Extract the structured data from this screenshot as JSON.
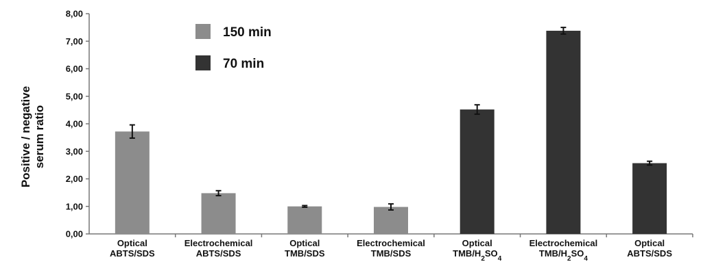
{
  "chart_data": {
    "type": "bar",
    "ylabel_lines": [
      "Positive / negative",
      "serum ratio"
    ],
    "ylim": [
      0,
      8
    ],
    "y_ticks": [
      "0,00",
      "1,00",
      "2,00",
      "3,00",
      "4,00",
      "5,00",
      "6,00",
      "7,00",
      "8,00"
    ],
    "grid": false,
    "legend_position": "top-left",
    "categories": [
      [
        "Optical",
        "ABTS/SDS"
      ],
      [
        "Electrochemical",
        "ABTS/SDS"
      ],
      [
        "Optical",
        "TMB/SDS"
      ],
      [
        "Electrochemical",
        "TMB/SDS"
      ],
      [
        "Optical",
        "TMB/H2SO4"
      ],
      [
        "Electrochemical",
        "TMB/H2SO4"
      ],
      [
        "Optical",
        "ABTS/SDS"
      ]
    ],
    "series": [
      {
        "name": "150 min",
        "color": "#8c8c8c"
      },
      {
        "name": "70 min",
        "color": "#333333"
      }
    ],
    "bars": [
      {
        "series": 0,
        "value": 3.72,
        "error": 0.24
      },
      {
        "series": 0,
        "value": 1.48,
        "error": 0.09
      },
      {
        "series": 0,
        "value": 1.0,
        "error": 0.03
      },
      {
        "series": 0,
        "value": 0.98,
        "error": 0.11
      },
      {
        "series": 1,
        "value": 4.52,
        "error": 0.17
      },
      {
        "series": 1,
        "value": 7.38,
        "error": 0.12
      },
      {
        "series": 1,
        "value": 2.57,
        "error": 0.07
      }
    ]
  }
}
